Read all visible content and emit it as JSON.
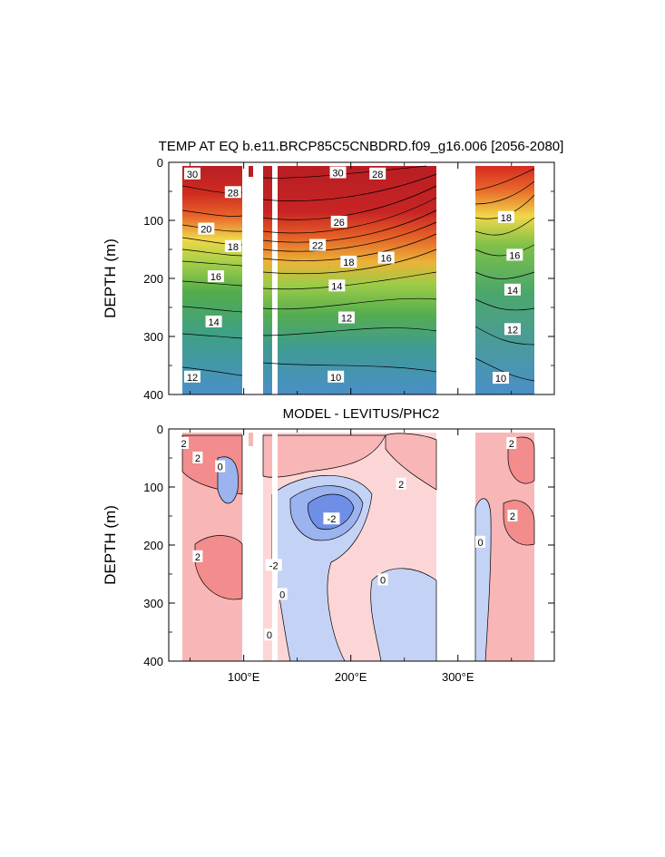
{
  "chart_data": [
    {
      "type": "contour",
      "title": "TEMP AT EQ b.e11.BRCP85C5CNBDRD.f09_g16.006 [2056-2080]",
      "ylabel": "DEPTH (m)",
      "ylim": [
        400,
        0
      ],
      "yticks": [
        "0",
        "100",
        "200",
        "300",
        "400"
      ],
      "xlim": [
        30,
        390
      ],
      "xticks": [
        "100°E",
        "200°E",
        "300°E"
      ],
      "xtick_values": [
        100,
        200,
        300
      ],
      "land_gaps_lon": [
        [
          97,
          118
        ],
        [
          280,
          315
        ]
      ],
      "contour_labels": [
        {
          "text": "30",
          "lon": 52,
          "depth": 20
        },
        {
          "text": "28",
          "lon": 90,
          "depth": 52
        },
        {
          "text": "20",
          "lon": 65,
          "depth": 115
        },
        {
          "text": "18",
          "lon": 90,
          "depth": 145
        },
        {
          "text": "16",
          "lon": 74,
          "depth": 197
        },
        {
          "text": "14",
          "lon": 72,
          "depth": 275
        },
        {
          "text": "12",
          "lon": 52,
          "depth": 370
        },
        {
          "text": "30",
          "lon": 188,
          "depth": 18
        },
        {
          "text": "28",
          "lon": 225,
          "depth": 20
        },
        {
          "text": "26",
          "lon": 189,
          "depth": 103
        },
        {
          "text": "22",
          "lon": 169,
          "depth": 143
        },
        {
          "text": "18",
          "lon": 198,
          "depth": 172
        },
        {
          "text": "16",
          "lon": 233,
          "depth": 165
        },
        {
          "text": "14",
          "lon": 187,
          "depth": 213
        },
        {
          "text": "12",
          "lon": 196,
          "depth": 268
        },
        {
          "text": "10",
          "lon": 186,
          "depth": 370
        },
        {
          "text": "18",
          "lon": 345,
          "depth": 95
        },
        {
          "text": "16",
          "lon": 353,
          "depth": 160
        },
        {
          "text": "14",
          "lon": 351,
          "depth": 220
        },
        {
          "text": "12",
          "lon": 351,
          "depth": 288
        },
        {
          "text": "10",
          "lon": 340,
          "depth": 372
        }
      ]
    },
    {
      "type": "contour",
      "title": "MODEL - LEVITUS/PHC2",
      "ylabel": "DEPTH (m)",
      "ylim": [
        400,
        0
      ],
      "yticks": [
        "0",
        "100",
        "200",
        "300",
        "400"
      ],
      "xlim": [
        30,
        390
      ],
      "xticks": [
        "100°E",
        "200°E",
        "300°E"
      ],
      "xtick_values": [
        100,
        200,
        300
      ],
      "land_gaps_lon": [
        [
          97,
          118
        ],
        [
          280,
          315
        ]
      ],
      "contour_labels": [
        {
          "text": "2",
          "lon": 44,
          "depth": 25
        },
        {
          "text": "2",
          "lon": 57,
          "depth": 50
        },
        {
          "text": "0",
          "lon": 78,
          "depth": 65
        },
        {
          "text": "2",
          "lon": 247,
          "depth": 95
        },
        {
          "text": "-2",
          "lon": 182,
          "depth": 155
        },
        {
          "text": "2",
          "lon": 57,
          "depth": 220
        },
        {
          "text": "-2",
          "lon": 128,
          "depth": 235
        },
        {
          "text": "0",
          "lon": 136,
          "depth": 285
        },
        {
          "text": "0",
          "lon": 230,
          "depth": 260
        },
        {
          "text": "0",
          "lon": 124,
          "depth": 355
        },
        {
          "text": "2",
          "lon": 350,
          "depth": 25
        },
        {
          "text": "2",
          "lon": 351,
          "depth": 150
        },
        {
          "text": "0",
          "lon": 321,
          "depth": 195
        }
      ]
    }
  ],
  "colors": {
    "temp_warm": "#b81e23",
    "temp_mid": "#f0d848",
    "temp_green": "#53ad4c",
    "temp_cool": "#4a8fc9",
    "diff_pos_strong": "#f38c8c",
    "diff_pos": "#f9b6b6",
    "diff_pos_weak": "#fcd6d6",
    "diff_neg_weak": "#c4d3f5",
    "diff_neg": "#9bb3ee",
    "diff_neg_strong": "#6f8ee6"
  }
}
